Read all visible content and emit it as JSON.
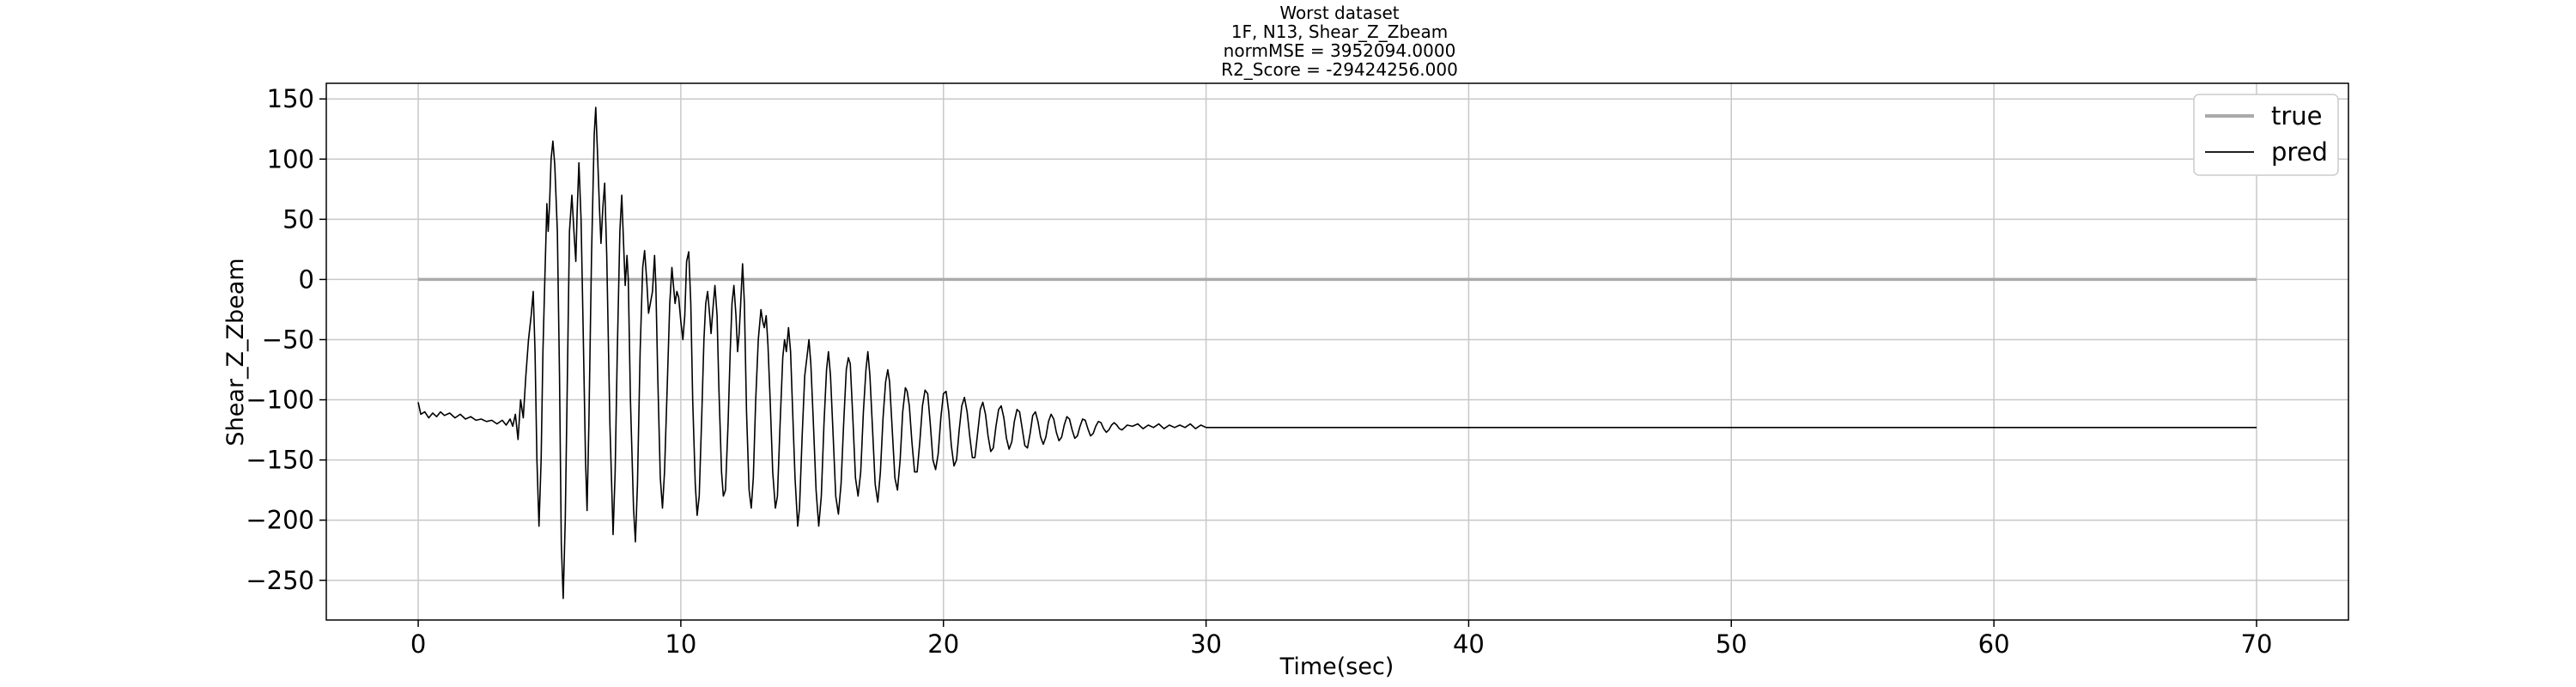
{
  "chart_data": {
    "type": "line",
    "title_lines": [
      "Worst dataset",
      "1F, N13, Shear_Z_Zbeam",
      "normMSE = 3952094.0000",
      "R2_Score = -29424256.000"
    ],
    "xlabel": "Time(sec)",
    "ylabel": "Shear_Z_Zbeam",
    "xlim": [
      -3.5,
      73.5
    ],
    "ylim": [
      -283,
      163
    ],
    "xticks": [
      0,
      10,
      20,
      30,
      40,
      50,
      60,
      70
    ],
    "yticks": [
      150,
      100,
      50,
      0,
      -50,
      -100,
      -150,
      -200,
      -250
    ],
    "grid": true,
    "legend_position": "top-right",
    "series": [
      {
        "name": "true",
        "color": "#aaaaaa",
        "points": [
          [
            0,
            0
          ],
          [
            70,
            0
          ]
        ]
      },
      {
        "name": "pred",
        "color": "#000000",
        "points": [
          [
            0.0,
            -102
          ],
          [
            0.1,
            -112
          ],
          [
            0.25,
            -110
          ],
          [
            0.4,
            -115
          ],
          [
            0.55,
            -111
          ],
          [
            0.7,
            -114
          ],
          [
            0.85,
            -110
          ],
          [
            1.0,
            -113
          ],
          [
            1.2,
            -111
          ],
          [
            1.4,
            -115
          ],
          [
            1.6,
            -112
          ],
          [
            1.8,
            -116
          ],
          [
            2.0,
            -114
          ],
          [
            2.2,
            -117
          ],
          [
            2.4,
            -116
          ],
          [
            2.6,
            -118
          ],
          [
            2.8,
            -117
          ],
          [
            3.0,
            -120
          ],
          [
            3.2,
            -117
          ],
          [
            3.35,
            -121
          ],
          [
            3.5,
            -116
          ],
          [
            3.6,
            -122
          ],
          [
            3.7,
            -112
          ],
          [
            3.8,
            -133
          ],
          [
            3.9,
            -100
          ],
          [
            4.0,
            -115
          ],
          [
            4.1,
            -80
          ],
          [
            4.2,
            -50
          ],
          [
            4.3,
            -30
          ],
          [
            4.38,
            -10
          ],
          [
            4.45,
            -60
          ],
          [
            4.52,
            -150
          ],
          [
            4.6,
            -205
          ],
          [
            4.68,
            -150
          ],
          [
            4.75,
            -60
          ],
          [
            4.82,
            0
          ],
          [
            4.9,
            63
          ],
          [
            4.95,
            40
          ],
          [
            5.0,
            62
          ],
          [
            5.06,
            100
          ],
          [
            5.13,
            115
          ],
          [
            5.2,
            95
          ],
          [
            5.26,
            62
          ],
          [
            5.3,
            40
          ],
          [
            5.38,
            -80
          ],
          [
            5.45,
            -220
          ],
          [
            5.52,
            -265
          ],
          [
            5.6,
            -200
          ],
          [
            5.68,
            -80
          ],
          [
            5.76,
            40
          ],
          [
            5.85,
            70
          ],
          [
            5.93,
            40
          ],
          [
            6.0,
            15
          ],
          [
            6.05,
            55
          ],
          [
            6.12,
            97
          ],
          [
            6.2,
            50
          ],
          [
            6.28,
            -40
          ],
          [
            6.37,
            -150
          ],
          [
            6.43,
            -192
          ],
          [
            6.5,
            -120
          ],
          [
            6.6,
            20
          ],
          [
            6.7,
            120
          ],
          [
            6.76,
            143
          ],
          [
            6.82,
            110
          ],
          [
            6.9,
            60
          ],
          [
            6.96,
            30
          ],
          [
            7.03,
            60
          ],
          [
            7.1,
            80
          ],
          [
            7.18,
            20
          ],
          [
            7.3,
            -120
          ],
          [
            7.42,
            -212
          ],
          [
            7.5,
            -160
          ],
          [
            7.58,
            -60
          ],
          [
            7.68,
            40
          ],
          [
            7.75,
            70
          ],
          [
            7.82,
            30
          ],
          [
            7.88,
            -5
          ],
          [
            7.95,
            20
          ],
          [
            8.0,
            0
          ],
          [
            8.08,
            -100
          ],
          [
            8.2,
            -190
          ],
          [
            8.27,
            -218
          ],
          [
            8.35,
            -170
          ],
          [
            8.45,
            -60
          ],
          [
            8.55,
            10
          ],
          [
            8.62,
            24
          ],
          [
            8.7,
            0
          ],
          [
            8.77,
            -28
          ],
          [
            8.84,
            -20
          ],
          [
            8.92,
            -10
          ],
          [
            9.0,
            20
          ],
          [
            9.05,
            -5
          ],
          [
            9.12,
            -80
          ],
          [
            9.22,
            -165
          ],
          [
            9.3,
            -190
          ],
          [
            9.38,
            -160
          ],
          [
            9.48,
            -90
          ],
          [
            9.58,
            -20
          ],
          [
            9.66,
            10
          ],
          [
            9.72,
            -5
          ],
          [
            9.78,
            -20
          ],
          [
            9.85,
            -10
          ],
          [
            9.92,
            -15
          ],
          [
            10.0,
            -35
          ],
          [
            10.08,
            -50
          ],
          [
            10.15,
            -30
          ],
          [
            10.22,
            15
          ],
          [
            10.3,
            23
          ],
          [
            10.38,
            -20
          ],
          [
            10.45,
            -100
          ],
          [
            10.55,
            -170
          ],
          [
            10.62,
            -196
          ],
          [
            10.7,
            -180
          ],
          [
            10.8,
            -110
          ],
          [
            10.88,
            -50
          ],
          [
            10.95,
            -20
          ],
          [
            11.02,
            -10
          ],
          [
            11.1,
            -30
          ],
          [
            11.15,
            -45
          ],
          [
            11.22,
            -25
          ],
          [
            11.3,
            -5
          ],
          [
            11.38,
            -30
          ],
          [
            11.45,
            -90
          ],
          [
            11.55,
            -160
          ],
          [
            11.62,
            -180
          ],
          [
            11.7,
            -175
          ],
          [
            11.8,
            -120
          ],
          [
            11.88,
            -60
          ],
          [
            11.95,
            -20
          ],
          [
            12.02,
            -5
          ],
          [
            12.1,
            -30
          ],
          [
            12.16,
            -60
          ],
          [
            12.22,
            -45
          ],
          [
            12.28,
            -20
          ],
          [
            12.35,
            13
          ],
          [
            12.42,
            -20
          ],
          [
            12.5,
            -110
          ],
          [
            12.6,
            -175
          ],
          [
            12.68,
            -190
          ],
          [
            12.76,
            -165
          ],
          [
            12.85,
            -100
          ],
          [
            12.95,
            -50
          ],
          [
            13.05,
            -25
          ],
          [
            13.12,
            -35
          ],
          [
            13.18,
            -40
          ],
          [
            13.25,
            -30
          ],
          [
            13.32,
            -55
          ],
          [
            13.4,
            -100
          ],
          [
            13.5,
            -160
          ],
          [
            13.6,
            -190
          ],
          [
            13.68,
            -180
          ],
          [
            13.78,
            -120
          ],
          [
            13.88,
            -65
          ],
          [
            13.95,
            -50
          ],
          [
            14.02,
            -60
          ],
          [
            14.1,
            -40
          ],
          [
            14.18,
            -60
          ],
          [
            14.25,
            -105
          ],
          [
            14.35,
            -165
          ],
          [
            14.45,
            -205
          ],
          [
            14.52,
            -190
          ],
          [
            14.62,
            -130
          ],
          [
            14.72,
            -80
          ],
          [
            14.8,
            -65
          ],
          [
            14.88,
            -50
          ],
          [
            14.95,
            -70
          ],
          [
            15.05,
            -120
          ],
          [
            15.15,
            -175
          ],
          [
            15.25,
            -205
          ],
          [
            15.35,
            -180
          ],
          [
            15.45,
            -120
          ],
          [
            15.55,
            -75
          ],
          [
            15.62,
            -60
          ],
          [
            15.7,
            -80
          ],
          [
            15.8,
            -130
          ],
          [
            15.9,
            -180
          ],
          [
            16.0,
            -195
          ],
          [
            16.1,
            -170
          ],
          [
            16.2,
            -120
          ],
          [
            16.3,
            -75
          ],
          [
            16.38,
            -65
          ],
          [
            16.45,
            -70
          ],
          [
            16.55,
            -115
          ],
          [
            16.65,
            -165
          ],
          [
            16.75,
            -180
          ],
          [
            16.85,
            -160
          ],
          [
            16.95,
            -110
          ],
          [
            17.05,
            -75
          ],
          [
            17.12,
            -60
          ],
          [
            17.2,
            -80
          ],
          [
            17.3,
            -125
          ],
          [
            17.4,
            -170
          ],
          [
            17.5,
            -185
          ],
          [
            17.6,
            -160
          ],
          [
            17.7,
            -115
          ],
          [
            17.8,
            -85
          ],
          [
            17.88,
            -75
          ],
          [
            17.95,
            -85
          ],
          [
            18.05,
            -125
          ],
          [
            18.15,
            -165
          ],
          [
            18.25,
            -175
          ],
          [
            18.35,
            -150
          ],
          [
            18.45,
            -110
          ],
          [
            18.55,
            -90
          ],
          [
            18.62,
            -93
          ],
          [
            18.7,
            -105
          ],
          [
            18.8,
            -135
          ],
          [
            18.9,
            -160
          ],
          [
            19.0,
            -160
          ],
          [
            19.1,
            -135
          ],
          [
            19.2,
            -105
          ],
          [
            19.3,
            -92
          ],
          [
            19.4,
            -95
          ],
          [
            19.5,
            -120
          ],
          [
            19.6,
            -150
          ],
          [
            19.7,
            -158
          ],
          [
            19.8,
            -145
          ],
          [
            19.9,
            -115
          ],
          [
            20.0,
            -95
          ],
          [
            20.1,
            -93
          ],
          [
            20.2,
            -110
          ],
          [
            20.3,
            -138
          ],
          [
            20.4,
            -155
          ],
          [
            20.5,
            -150
          ],
          [
            20.6,
            -125
          ],
          [
            20.7,
            -105
          ],
          [
            20.8,
            -98
          ],
          [
            20.9,
            -110
          ],
          [
            21.0,
            -130
          ],
          [
            21.1,
            -148
          ],
          [
            21.2,
            -148
          ],
          [
            21.3,
            -128
          ],
          [
            21.4,
            -108
          ],
          [
            21.5,
            -102
          ],
          [
            21.6,
            -112
          ],
          [
            21.7,
            -130
          ],
          [
            21.8,
            -143
          ],
          [
            21.9,
            -140
          ],
          [
            22.0,
            -122
          ],
          [
            22.1,
            -108
          ],
          [
            22.2,
            -105
          ],
          [
            22.3,
            -115
          ],
          [
            22.4,
            -132
          ],
          [
            22.5,
            -141
          ],
          [
            22.6,
            -135
          ],
          [
            22.7,
            -118
          ],
          [
            22.8,
            -108
          ],
          [
            22.9,
            -110
          ],
          [
            23.0,
            -124
          ],
          [
            23.1,
            -138
          ],
          [
            23.2,
            -140
          ],
          [
            23.3,
            -128
          ],
          [
            23.4,
            -113
          ],
          [
            23.5,
            -110
          ],
          [
            23.6,
            -118
          ],
          [
            23.7,
            -131
          ],
          [
            23.8,
            -137
          ],
          [
            23.9,
            -131
          ],
          [
            24.0,
            -118
          ],
          [
            24.1,
            -112
          ],
          [
            24.2,
            -116
          ],
          [
            24.3,
            -127
          ],
          [
            24.4,
            -134
          ],
          [
            24.5,
            -131
          ],
          [
            24.6,
            -121
          ],
          [
            24.7,
            -114
          ],
          [
            24.8,
            -116
          ],
          [
            24.9,
            -125
          ],
          [
            25.0,
            -132
          ],
          [
            25.1,
            -130
          ],
          [
            25.2,
            -122
          ],
          [
            25.3,
            -116
          ],
          [
            25.4,
            -117
          ],
          [
            25.5,
            -124
          ],
          [
            25.6,
            -130
          ],
          [
            25.7,
            -128
          ],
          [
            25.8,
            -122
          ],
          [
            25.9,
            -118
          ],
          [
            26.0,
            -119
          ],
          [
            26.1,
            -124
          ],
          [
            26.2,
            -127
          ],
          [
            26.3,
            -125
          ],
          [
            26.4,
            -121
          ],
          [
            26.5,
            -119
          ],
          [
            26.6,
            -121
          ],
          [
            26.7,
            -124
          ],
          [
            26.8,
            -125
          ],
          [
            26.9,
            -123
          ],
          [
            27.0,
            -121
          ],
          [
            27.2,
            -122
          ],
          [
            27.4,
            -120
          ],
          [
            27.6,
            -124
          ],
          [
            27.8,
            -121
          ],
          [
            28.0,
            -123
          ],
          [
            28.2,
            -120
          ],
          [
            28.4,
            -124
          ],
          [
            28.6,
            -121
          ],
          [
            28.8,
            -123
          ],
          [
            29.0,
            -121
          ],
          [
            29.2,
            -123
          ],
          [
            29.4,
            -120
          ],
          [
            29.6,
            -124
          ],
          [
            29.8,
            -121
          ],
          [
            30.0,
            -123
          ]
        ]
      }
    ]
  },
  "legend": [
    {
      "label": "true",
      "color": "#aaaaaa"
    },
    {
      "label": "pred",
      "color": "#000000"
    }
  ]
}
